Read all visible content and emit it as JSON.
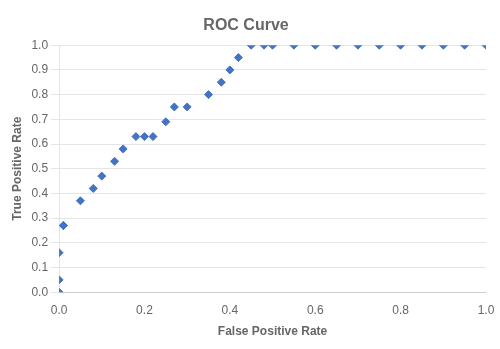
{
  "chart_data": {
    "type": "scatter",
    "title": "ROC Curve",
    "xlabel": "False Positive Rate",
    "ylabel": "True Positive Rate",
    "x": [
      0.0,
      0.0,
      0.0,
      0.01,
      0.01,
      0.05,
      0.08,
      0.1,
      0.13,
      0.15,
      0.18,
      0.2,
      0.22,
      0.25,
      0.27,
      0.3,
      0.35,
      0.38,
      0.4,
      0.42,
      0.45,
      0.48,
      0.5,
      0.55,
      0.6,
      0.65,
      0.7,
      0.75,
      0.8,
      0.85,
      0.9,
      0.95,
      1.0
    ],
    "values": [
      0.0,
      0.05,
      0.16,
      0.27,
      0.27,
      0.37,
      0.42,
      0.47,
      0.53,
      0.58,
      0.63,
      0.63,
      0.63,
      0.69,
      0.75,
      0.75,
      0.8,
      0.85,
      0.9,
      0.95,
      1.0,
      1.0,
      1.0,
      1.0,
      1.0,
      1.0,
      1.0,
      1.0,
      1.0,
      1.0,
      1.0,
      1.0,
      1.0
    ],
    "color": "#4472C4",
    "marker": "diamond",
    "xlim": [
      0,
      1
    ],
    "xticks": [
      {
        "value": 0,
        "label": "0.0"
      },
      0.2,
      0.4,
      0.6,
      0.8,
      {
        "value": 1.0,
        "label": "1.0"
      }
    ],
    "ylim": [
      0,
      1
    ],
    "yticks": [
      {
        "value": 0,
        "label": "0.0"
      },
      0.1,
      0.2,
      0.3,
      0.4,
      0.5,
      0.6,
      0.7,
      0.8,
      0.9,
      {
        "value": 1.0,
        "label": "1.0"
      }
    ],
    "grid": "y"
  }
}
